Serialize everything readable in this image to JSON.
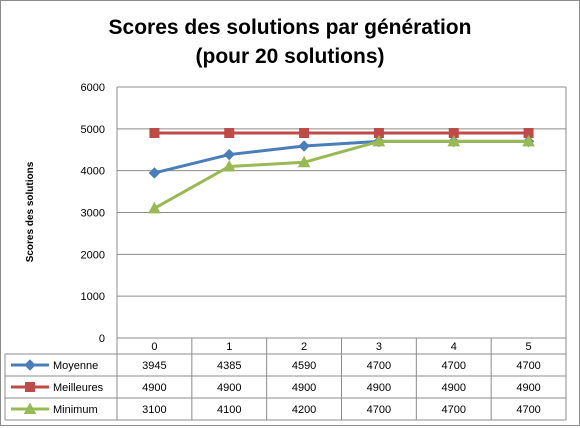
{
  "chart_data": {
    "type": "line",
    "title": [
      "Scores des solutions par génération",
      "(pour 20 solutions)"
    ],
    "ylabel": "Scores des solutions",
    "xlabel": "",
    "categories": [
      "0",
      "1",
      "2",
      "3",
      "4",
      "5"
    ],
    "ylim": [
      0,
      6000
    ],
    "yticks": [
      0,
      1000,
      2000,
      3000,
      4000,
      5000,
      6000
    ],
    "grid": "horizontal",
    "legend": "data-table",
    "series": [
      {
        "name": "Moyenne",
        "values": [
          3945,
          4385,
          4590,
          4700,
          4700,
          4700
        ],
        "color": "#4a7ebb",
        "marker": "diamond"
      },
      {
        "name": "Meilleures",
        "values": [
          4900,
          4900,
          4900,
          4900,
          4900,
          4900
        ],
        "color": "#be4b48",
        "marker": "square"
      },
      {
        "name": "Minimum",
        "values": [
          3100,
          4100,
          4200,
          4700,
          4700,
          4700
        ],
        "color": "#98b954",
        "marker": "triangle"
      }
    ]
  }
}
